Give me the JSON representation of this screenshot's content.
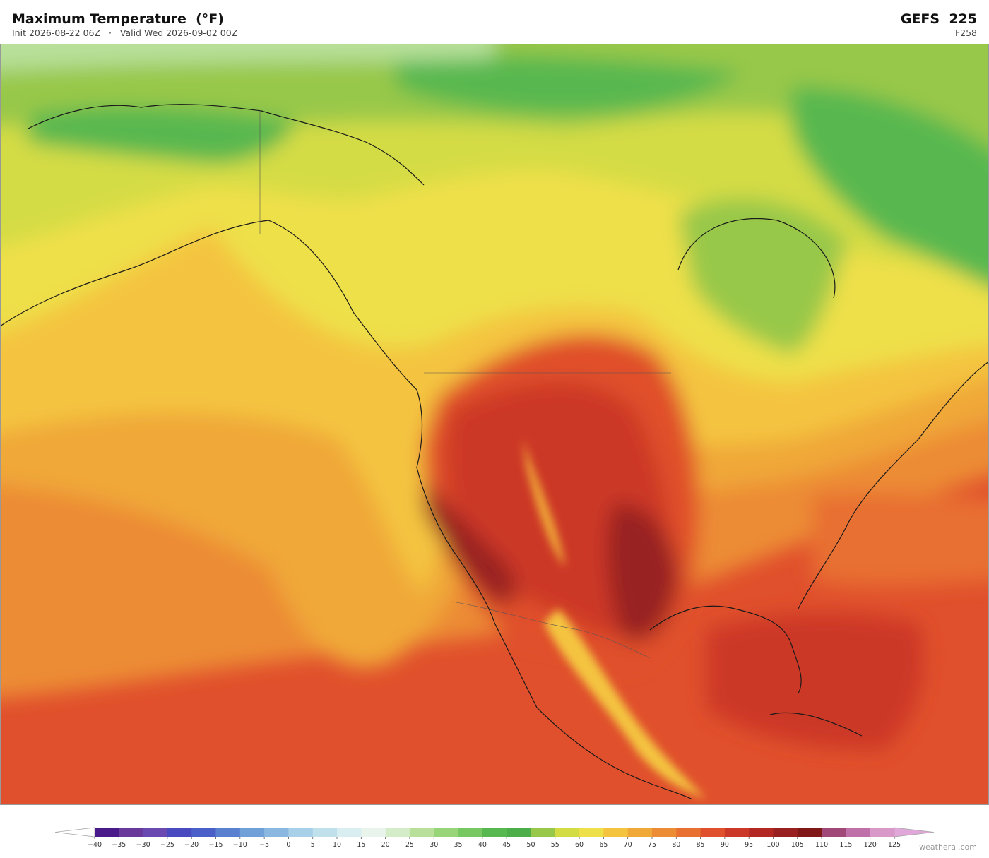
{
  "header": {
    "title": "Maximum Temperature  (°F)",
    "subtitle": "Init 2026-08-22 06Z   ·   Valid Wed 2026-09-02 00Z",
    "model": "GEFS  225",
    "forecast_hour": "F258"
  },
  "colorbar": {
    "ticks": [
      {
        "value": -40,
        "label": "−40"
      },
      {
        "value": -35,
        "label": "−35"
      },
      {
        "value": -30,
        "label": "−30"
      },
      {
        "value": -25,
        "label": "−25"
      },
      {
        "value": -20,
        "label": "−20"
      },
      {
        "value": -15,
        "label": "−15"
      },
      {
        "value": -10,
        "label": "−10"
      },
      {
        "value": -5,
        "label": "−5"
      },
      0,
      5,
      10,
      15,
      20,
      25,
      30,
      35,
      40,
      45,
      50,
      55,
      60,
      65,
      70,
      75,
      80,
      85,
      90,
      95,
      100,
      105,
      110,
      115,
      120,
      125
    ],
    "colors": [
      "#4a1a8a",
      "#6a3a9a",
      "#6a4ab0",
      "#4a4ac0",
      "#4a60c8",
      "#5a80d0",
      "#70a0d8",
      "#8ab8e0",
      "#a8d0e8",
      "#c0e0ec",
      "#d8eef0",
      "#e8f4ec",
      "#d4ecc8",
      "#b8e09a",
      "#98d478",
      "#78c862",
      "#58b850",
      "#4cae48",
      "#98c84a",
      "#d4dc44",
      "#eee048",
      "#f4c440",
      "#f0a838",
      "#ec8c34",
      "#e87030",
      "#e0502c",
      "#cc3828",
      "#b42824",
      "#982020",
      "#801818",
      "#a04878",
      "#c070a8",
      "#d898c8"
    ],
    "under_color": "#ffffff",
    "over_color": "#e0a8d8"
  },
  "footer": {
    "watermark": "weatherai.com"
  }
}
